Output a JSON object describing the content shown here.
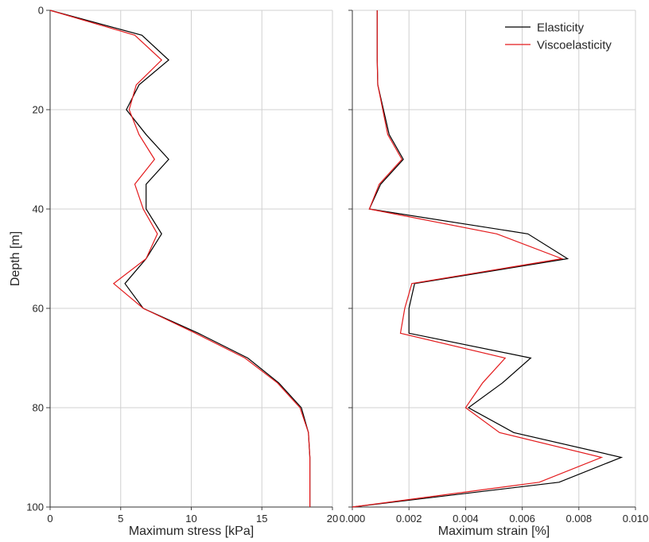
{
  "chart_data": [
    {
      "type": "line",
      "xlabel": "Maximum stress [kPa]",
      "ylabel": "Depth [m]",
      "xlim": [
        0,
        20
      ],
      "ylim": [
        100,
        0
      ],
      "y_inverted": true,
      "grid": true,
      "x_ticks": [
        0,
        5,
        10,
        15,
        20
      ],
      "y_ticks": [
        0,
        20,
        40,
        60,
        80,
        100
      ],
      "x_tick_labels": [
        "0",
        "5",
        "10",
        "15",
        "20"
      ],
      "y_tick_labels": [
        "0",
        "20",
        "40",
        "60",
        "80",
        "100"
      ],
      "series": [
        {
          "name": "Elasticity",
          "color": "#000000",
          "points": [
            [
              0,
              0
            ],
            [
              6.5,
              5
            ],
            [
              8.4,
              10
            ],
            [
              6.3,
              15
            ],
            [
              5.4,
              20
            ],
            [
              6.8,
              25
            ],
            [
              8.4,
              30
            ],
            [
              6.8,
              35
            ],
            [
              6.8,
              40
            ],
            [
              7.9,
              45
            ],
            [
              6.8,
              50
            ],
            [
              5.3,
              55
            ],
            [
              6.6,
              60
            ],
            [
              10.5,
              65
            ],
            [
              14.0,
              70
            ],
            [
              16.2,
              75
            ],
            [
              17.8,
              80
            ],
            [
              18.3,
              85
            ],
            [
              18.4,
              90
            ],
            [
              18.4,
              95
            ],
            [
              18.4,
              100
            ]
          ]
        },
        {
          "name": "Viscoelasticity",
          "color": "#e31a1c",
          "points": [
            [
              0,
              0
            ],
            [
              6.0,
              5
            ],
            [
              7.9,
              10
            ],
            [
              6.1,
              15
            ],
            [
              5.6,
              20
            ],
            [
              6.3,
              25
            ],
            [
              7.4,
              30
            ],
            [
              6.0,
              35
            ],
            [
              6.6,
              40
            ],
            [
              7.6,
              45
            ],
            [
              6.8,
              50
            ],
            [
              4.5,
              55
            ],
            [
              6.6,
              60
            ],
            [
              10.3,
              65
            ],
            [
              13.8,
              70
            ],
            [
              16.1,
              75
            ],
            [
              17.7,
              80
            ],
            [
              18.3,
              85
            ],
            [
              18.4,
              90
            ],
            [
              18.4,
              95
            ],
            [
              18.4,
              100
            ]
          ]
        }
      ]
    },
    {
      "type": "line",
      "xlabel": "Maximum strain [%]",
      "ylabel": "",
      "xlim": [
        0,
        0.01
      ],
      "ylim": [
        100,
        0
      ],
      "y_inverted": true,
      "grid": true,
      "legend": "top-right",
      "x_ticks": [
        0,
        0.002,
        0.004,
        0.006,
        0.008,
        0.01
      ],
      "y_ticks": [
        0,
        20,
        40,
        60,
        80,
        100
      ],
      "x_tick_labels": [
        "0.000",
        "0.002",
        "0.004",
        "0.006",
        "0.008",
        "0.010"
      ],
      "series": [
        {
          "name": "Elasticity",
          "color": "#000000",
          "points": [
            [
              0.00088,
              0
            ],
            [
              0.00088,
              5
            ],
            [
              0.00088,
              10
            ],
            [
              0.0009,
              15
            ],
            [
              0.0013,
              25
            ],
            [
              0.0018,
              30
            ],
            [
              0.001,
              35
            ],
            [
              0.0006,
              40
            ],
            [
              0.0062,
              45
            ],
            [
              0.0076,
              50
            ],
            [
              0.0022,
              55
            ],
            [
              0.002,
              60
            ],
            [
              0.002,
              65
            ],
            [
              0.0063,
              70
            ],
            [
              0.0053,
              75
            ],
            [
              0.0041,
              80
            ],
            [
              0.0057,
              85
            ],
            [
              0.0095,
              90
            ],
            [
              0.0073,
              95
            ],
            [
              0.0,
              100
            ]
          ]
        },
        {
          "name": "Viscoelasticity",
          "color": "#e31a1c",
          "points": [
            [
              0.00088,
              0
            ],
            [
              0.00088,
              5
            ],
            [
              0.00088,
              10
            ],
            [
              0.0009,
              15
            ],
            [
              0.00125,
              25
            ],
            [
              0.00175,
              30
            ],
            [
              0.00095,
              35
            ],
            [
              0.0006,
              40
            ],
            [
              0.0051,
              45
            ],
            [
              0.0074,
              50
            ],
            [
              0.0021,
              55
            ],
            [
              0.00185,
              60
            ],
            [
              0.0017,
              65
            ],
            [
              0.0054,
              70
            ],
            [
              0.0046,
              75
            ],
            [
              0.004,
              80
            ],
            [
              0.0052,
              85
            ],
            [
              0.0088,
              90
            ],
            [
              0.0066,
              95
            ],
            [
              0.0,
              100
            ]
          ]
        }
      ]
    }
  ]
}
